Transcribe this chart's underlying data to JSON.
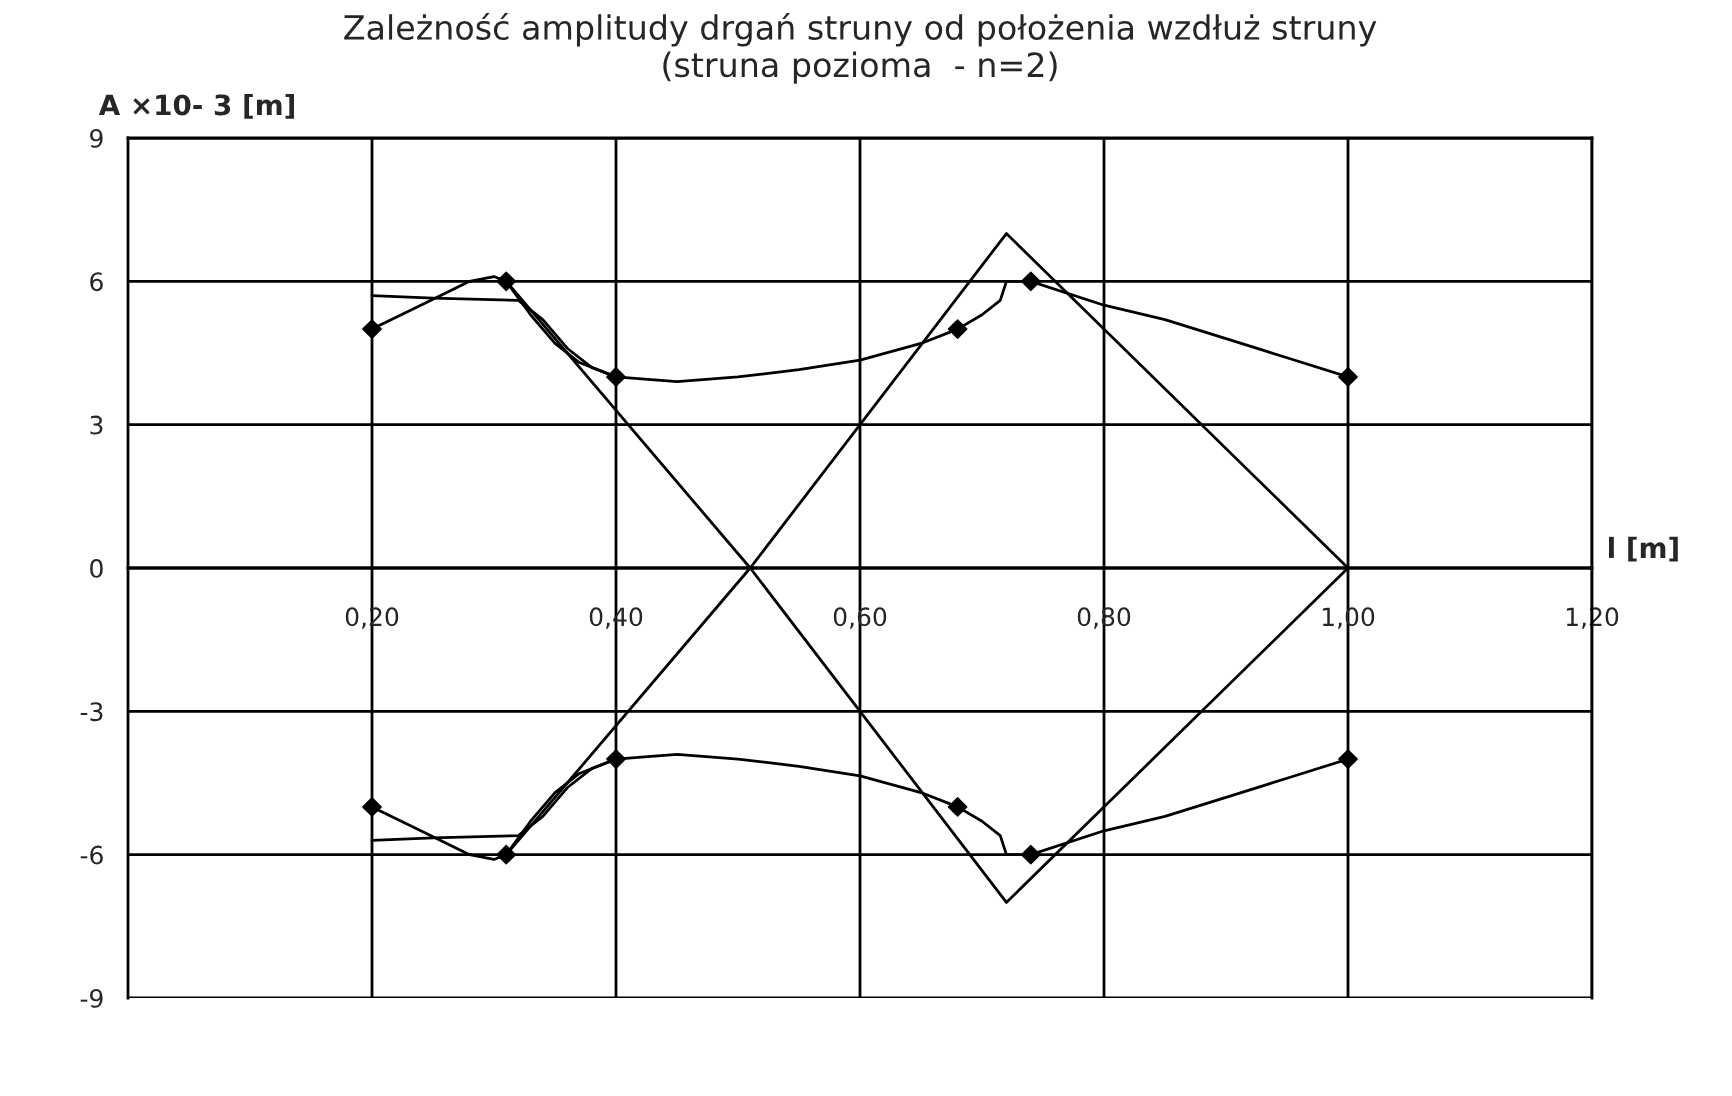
{
  "chart_data": {
    "type": "line",
    "title": "Zależność amplitudy drgań struny od położenia wzdłuż struny\n(struna pozioma  - n=2)",
    "xlabel": "l [m]",
    "ylabel": "A ×10- 3 [m]",
    "xlim": [
      0,
      1.2
    ],
    "ylim": [
      -9,
      9
    ],
    "xticks": [
      {
        "value": 0.2,
        "label": "0,20"
      },
      {
        "value": 0.4,
        "label": "0,40"
      },
      {
        "value": 0.6,
        "label": "0,60"
      },
      {
        "value": 0.8,
        "label": "0,80"
      },
      {
        "value": 1.0,
        "label": "1,00"
      },
      {
        "value": 1.2,
        "label": "1,20"
      }
    ],
    "yticks": [
      -9,
      -6,
      -3,
      0,
      3,
      6,
      9
    ],
    "grid": true,
    "series": [
      {
        "color": "#000000",
        "marker": "none",
        "x": [
          0.2,
          0.24,
          0.28,
          0.3,
          0.31,
          0.33,
          0.35,
          0.37,
          0.4,
          0.45,
          0.5,
          0.55,
          0.6,
          0.65,
          0.68,
          0.7,
          0.715,
          0.72,
          0.74,
          0.8,
          0.85,
          0.9,
          0.95,
          1.0
        ],
        "values": [
          5,
          5.5,
          6.0,
          6.1,
          6.0,
          5.3,
          4.7,
          4.3,
          4.0,
          3.9,
          4.0,
          4.15,
          4.35,
          4.7,
          5.0,
          5.3,
          5.6,
          6.0,
          6.0,
          5.5,
          5.2,
          4.8,
          4.4,
          4.0
        ]
      },
      {
        "type": "line",
        "color": "#000000",
        "marker": "none",
        "x": [
          0.2,
          0.2,
          0.24,
          0.28,
          0.3,
          0.31,
          0.33,
          0.35,
          0.37,
          0.4,
          0.45,
          0.5,
          0.55,
          0.6,
          0.65,
          0.68,
          0.7,
          0.715,
          0.72,
          0.74,
          0.8,
          0.85,
          0.9,
          0.95,
          1.0
        ],
        "values": [
          -5,
          -5,
          -5.5,
          -6.0,
          -6.1,
          -6.0,
          -5.3,
          -4.7,
          -4.3,
          -4.0,
          -3.9,
          -4.0,
          -4.15,
          -4.35,
          -4.7,
          -5.0,
          -5.3,
          -5.6,
          -6.0,
          -6.0,
          -5.5,
          -5.2,
          -4.8,
          -4.4,
          -4.0
        ]
      },
      {
        "type": "line",
        "color": "#000000",
        "marker": "none",
        "x": [
          0.2,
          0.25,
          0.32,
          0.34,
          0.36,
          0.38,
          0.4
        ],
        "values": [
          5.7,
          5.65,
          5.6,
          5.2,
          4.6,
          4.2,
          4.0
        ]
      },
      {
        "type": "line",
        "color": "#000000",
        "marker": "none",
        "x": [
          0.2,
          0.25,
          0.32,
          0.34,
          0.36,
          0.38,
          0.4
        ],
        "values": [
          -5.7,
          -5.65,
          -5.6,
          -5.2,
          -4.6,
          -4.2,
          -4.0
        ]
      },
      {
        "type": "line",
        "color": "#000000",
        "marker": "none",
        "x": [
          0.31,
          0.51,
          0.72,
          1.0
        ],
        "values": [
          6,
          0,
          -7,
          0
        ]
      },
      {
        "type": "line",
        "color": "#000000",
        "marker": "none",
        "x": [
          0.31,
          0.51,
          0.72,
          1.0
        ],
        "values": [
          -6,
          0,
          7,
          0
        ]
      },
      {
        "type": "scatter",
        "color": "#000000",
        "marker": "diamond",
        "x": [
          0.2,
          0.31,
          0.4,
          0.68,
          0.74,
          1.0
        ],
        "values": [
          5,
          6,
          4,
          5,
          6,
          4
        ]
      },
      {
        "type": "scatter",
        "color": "#000000",
        "marker": "diamond",
        "x": [
          0.2,
          0.31,
          0.4,
          0.68,
          0.74,
          1.0
        ],
        "values": [
          -5,
          -6,
          -4,
          -5,
          -6,
          -4
        ]
      }
    ]
  }
}
